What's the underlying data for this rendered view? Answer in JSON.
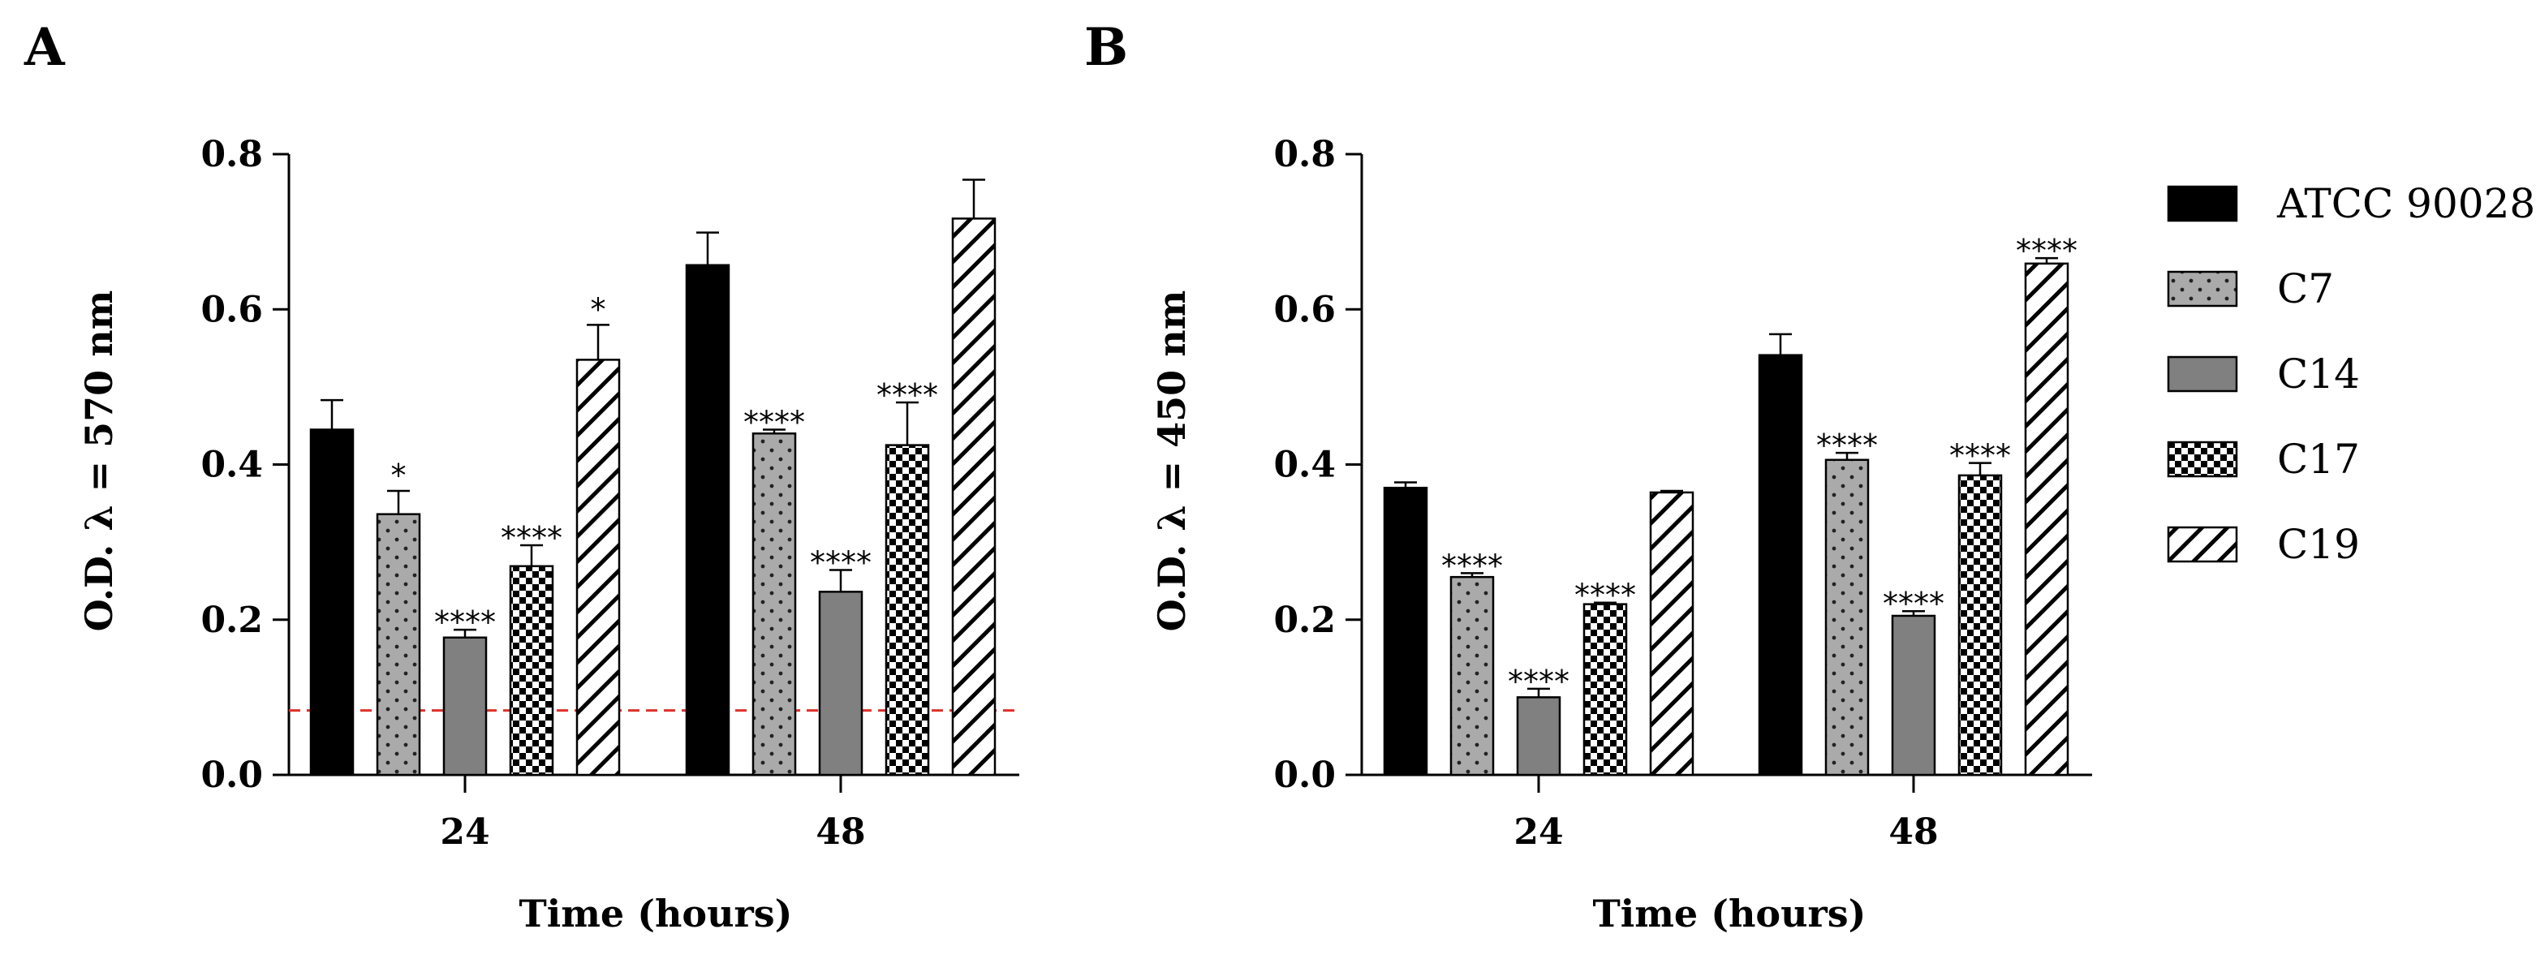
{
  "figure": {
    "legend": [
      {
        "label": "ATCC 90028",
        "pattern": "solid-black"
      },
      {
        "label": "C7",
        "pattern": "dots"
      },
      {
        "label": "C14",
        "pattern": "solid-gray"
      },
      {
        "label": "C17",
        "pattern": "checker"
      },
      {
        "label": "C19",
        "pattern": "diagonal"
      }
    ],
    "colors": {
      "black": "#000000",
      "gray": "#808080",
      "dot_bg": "#aaaaaa",
      "threshold": "#e0302a"
    }
  },
  "chart_data": [
    {
      "panel": "A",
      "type": "bar",
      "xlabel": "Time (hours)",
      "ylabel": "O.D. λ = 570 nm",
      "ylim": [
        0,
        0.8
      ],
      "yticks": [
        "0.0",
        "0.2",
        "0.4",
        "0.6",
        "0.8"
      ],
      "categories": [
        "24",
        "48"
      ],
      "threshold": 0.083,
      "series": [
        {
          "name": "ATCC 90028",
          "values": [
            0.445,
            0.657
          ],
          "errors": [
            0.038,
            0.042
          ],
          "sig": [
            "",
            ""
          ]
        },
        {
          "name": "C7",
          "values": [
            0.336,
            0.44
          ],
          "errors": [
            0.03,
            0.005
          ],
          "sig": [
            "*",
            "****"
          ]
        },
        {
          "name": "C14",
          "values": [
            0.177,
            0.236
          ],
          "errors": [
            0.01,
            0.028
          ],
          "sig": [
            "****",
            "****"
          ]
        },
        {
          "name": "C17",
          "values": [
            0.269,
            0.425
          ],
          "errors": [
            0.027,
            0.055
          ],
          "sig": [
            "****",
            "****"
          ]
        },
        {
          "name": "C19",
          "values": [
            0.535,
            0.717
          ],
          "errors": [
            0.045,
            0.05
          ],
          "sig": [
            "*",
            ""
          ]
        }
      ]
    },
    {
      "panel": "B",
      "type": "bar",
      "xlabel": "Time (hours)",
      "ylabel": "O.D. λ = 450 nm",
      "ylim": [
        0,
        0.8
      ],
      "yticks": [
        "0.0",
        "0.2",
        "0.4",
        "0.6",
        "0.8"
      ],
      "categories": [
        "24",
        "48"
      ],
      "series": [
        {
          "name": "ATCC 90028",
          "values": [
            0.37,
            0.541
          ],
          "errors": [
            0.007,
            0.027
          ],
          "sig": [
            "",
            ""
          ]
        },
        {
          "name": "C7",
          "values": [
            0.255,
            0.406
          ],
          "errors": [
            0.005,
            0.009
          ],
          "sig": [
            "****",
            "****"
          ]
        },
        {
          "name": "C14",
          "values": [
            0.1,
            0.205
          ],
          "errors": [
            0.011,
            0.006
          ],
          "sig": [
            "****",
            "****"
          ]
        },
        {
          "name": "C17",
          "values": [
            0.22,
            0.386
          ],
          "errors": [
            0.002,
            0.016
          ],
          "sig": [
            "****",
            "****"
          ]
        },
        {
          "name": "C19",
          "values": [
            0.364,
            0.659
          ],
          "errors": [
            0.002,
            0.007
          ],
          "sig": [
            "",
            "****"
          ]
        }
      ]
    }
  ]
}
